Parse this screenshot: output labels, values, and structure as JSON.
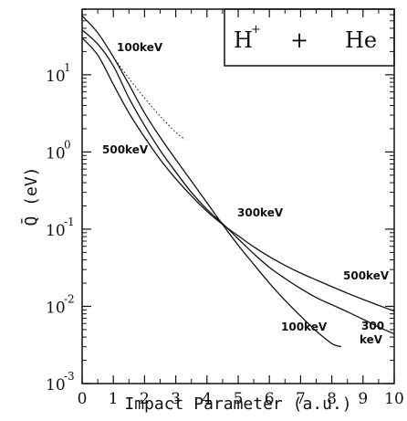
{
  "chart_data": {
    "type": "line",
    "title": "",
    "xlabel": "Impact Parameter (a.u.)",
    "ylabel": "Q̄ (eV)",
    "xlim": [
      0,
      10
    ],
    "ylim_log10": [
      -3,
      1.85
    ],
    "y_scale": "log",
    "grid": false,
    "x_ticks": [
      0,
      1,
      2,
      3,
      4,
      5,
      6,
      7,
      8,
      9,
      10
    ],
    "x_tick_labels": [
      "0",
      "1",
      "2",
      "3",
      "4",
      "5",
      "6",
      "7",
      "8",
      "9",
      "10"
    ],
    "y_ticks": [
      0.001,
      0.01,
      0.1,
      1,
      10
    ],
    "y_tick_labels": [
      {
        "base": "10",
        "exp": "-3"
      },
      {
        "base": "10",
        "exp": "-2"
      },
      {
        "base": "10",
        "exp": "-1"
      },
      {
        "base": "10",
        "exp": "0"
      },
      {
        "base": "10",
        "exp": "1"
      }
    ],
    "legend_box": {
      "h": "H",
      "plus_sup": "+",
      "op": "+",
      "he": "He",
      "placement": "top-right"
    },
    "series": [
      {
        "name": "100keV",
        "style": "solid",
        "x": [
          0,
          0.5,
          1.0,
          1.5,
          2.0,
          2.5,
          3.0,
          3.5,
          4.0,
          4.5,
          5.0,
          5.5,
          6.0,
          6.5,
          7.0,
          7.5,
          8.0,
          8.3
        ],
        "y": [
          58,
          35,
          17,
          7.5,
          3.2,
          1.55,
          0.8,
          0.42,
          0.22,
          0.115,
          0.062,
          0.035,
          0.02,
          0.012,
          0.0075,
          0.0048,
          0.0033,
          0.003
        ]
      },
      {
        "name": "300keV",
        "style": "solid",
        "x": [
          0,
          0.5,
          1.0,
          1.5,
          2.0,
          2.5,
          3.0,
          3.5,
          4.0,
          4.5,
          5.0,
          5.5,
          6.0,
          6.5,
          7.0,
          7.5,
          8.0,
          8.5,
          9.0,
          9.5,
          10.0
        ],
        "y": [
          38,
          25,
          13,
          5.0,
          2.2,
          1.05,
          0.55,
          0.3,
          0.18,
          0.118,
          0.075,
          0.048,
          0.032,
          0.023,
          0.017,
          0.013,
          0.0105,
          0.0085,
          0.0068,
          0.0054,
          0.0044
        ]
      },
      {
        "name": "500keV",
        "style": "solid",
        "x": [
          0,
          0.5,
          1.0,
          1.5,
          2.0,
          2.5,
          3.0,
          3.5,
          4.0,
          4.5,
          5.0,
          5.5,
          6.0,
          6.5,
          7.0,
          7.5,
          8.0,
          8.5,
          9.0,
          9.5,
          10.0
        ],
        "y": [
          30,
          18,
          7.5,
          3.2,
          1.55,
          0.8,
          0.45,
          0.27,
          0.17,
          0.115,
          0.082,
          0.059,
          0.044,
          0.034,
          0.027,
          0.022,
          0.018,
          0.0148,
          0.0123,
          0.0103,
          0.0087
        ]
      },
      {
        "name": "",
        "style": "dotted",
        "x": [
          1.0,
          1.5,
          2.0,
          2.5,
          3.0,
          3.3
        ],
        "y": [
          17,
          9.0,
          5.0,
          2.9,
          1.8,
          1.45
        ]
      }
    ],
    "annotations": {
      "a100_top": "100keV",
      "a500_left": "500keV",
      "a300_mid": "300keV",
      "a500_right": "500keV",
      "a100_bottom": "100keV",
      "a300_bottom_1": "300",
      "a300_bottom_2": "keV"
    }
  }
}
